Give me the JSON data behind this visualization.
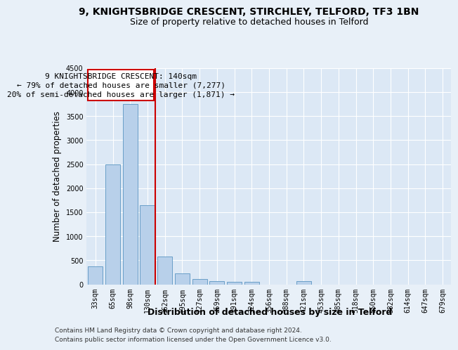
{
  "title": "9, KNIGHTSBRIDGE CRESCENT, STIRCHLEY, TELFORD, TF3 1BN",
  "subtitle": "Size of property relative to detached houses in Telford",
  "xlabel": "Distribution of detached houses by size in Telford",
  "ylabel": "Number of detached properties",
  "categories": [
    "33sqm",
    "65sqm",
    "98sqm",
    "130sqm",
    "162sqm",
    "195sqm",
    "227sqm",
    "259sqm",
    "291sqm",
    "324sqm",
    "356sqm",
    "388sqm",
    "421sqm",
    "453sqm",
    "485sqm",
    "518sqm",
    "550sqm",
    "582sqm",
    "614sqm",
    "647sqm",
    "679sqm"
  ],
  "values": [
    370,
    2500,
    3750,
    1640,
    580,
    220,
    105,
    60,
    55,
    45,
    0,
    0,
    70,
    0,
    0,
    0,
    0,
    0,
    0,
    0,
    0
  ],
  "bar_color": "#b8d0ea",
  "bar_edge_color": "#6a9fc8",
  "vline_color": "#cc0000",
  "annotation_line1": "9 KNIGHTSBRIDGE CRESCENT: 140sqm",
  "annotation_line2": "← 79% of detached houses are smaller (7,277)",
  "annotation_line3": "20% of semi-detached houses are larger (1,871) →",
  "annotation_box_color": "#cc0000",
  "footer1": "Contains HM Land Registry data © Crown copyright and database right 2024.",
  "footer2": "Contains public sector information licensed under the Open Government Licence v3.0.",
  "ylim": [
    0,
    4500
  ],
  "yticks": [
    0,
    500,
    1000,
    1500,
    2000,
    2500,
    3000,
    3500,
    4000,
    4500
  ],
  "bg_color": "#e8f0f8",
  "plot_bg_color": "#dce8f5",
  "grid_color": "#ffffff",
  "title_fontsize": 10,
  "subtitle_fontsize": 9,
  "tick_fontsize": 7,
  "ylabel_fontsize": 8.5,
  "xlabel_fontsize": 9,
  "annotation_fontsize": 8,
  "footer_fontsize": 6.5
}
